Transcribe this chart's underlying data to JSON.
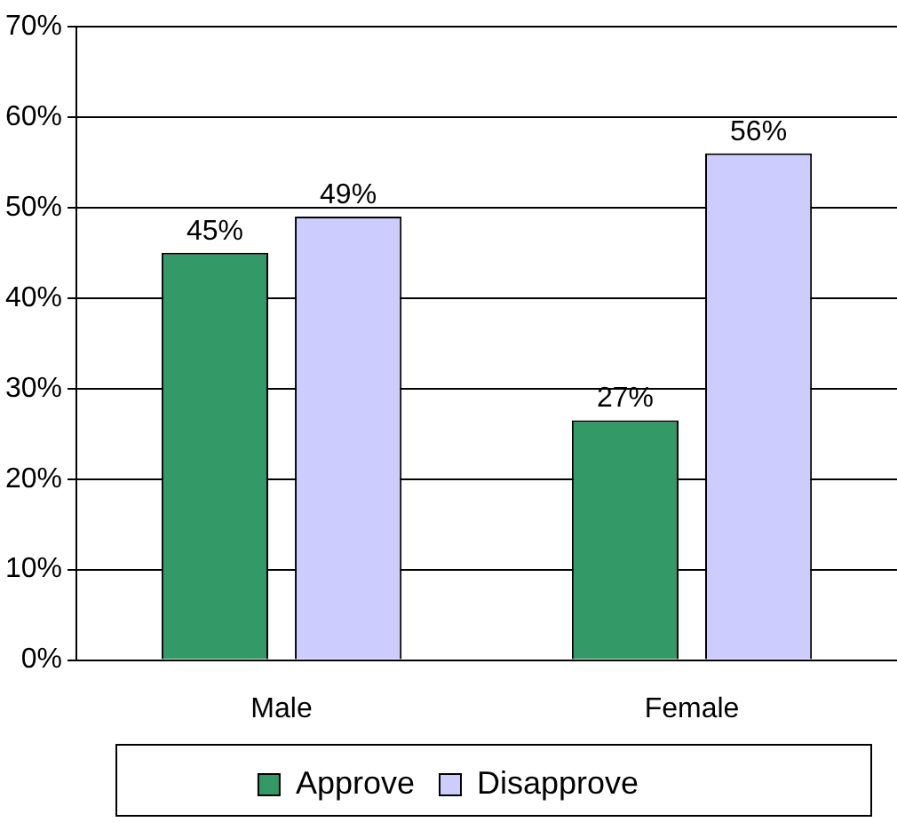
{
  "chart_data": {
    "type": "bar",
    "categories": [
      "Male",
      "Female"
    ],
    "series": [
      {
        "name": "Approve",
        "color": "#339966",
        "values": [
          45,
          26.5
        ],
        "value_labels": [
          "45%",
          "27%"
        ]
      },
      {
        "name": "Disapprove",
        "color": "#ccccff",
        "values": [
          49,
          56
        ],
        "value_labels": [
          "49%",
          "56%"
        ]
      }
    ],
    "ylim": [
      0,
      70
    ],
    "yticks": [
      {
        "value": 0,
        "label": "0%"
      },
      {
        "value": 10,
        "label": "10%"
      },
      {
        "value": 20,
        "label": "20%"
      },
      {
        "value": 30,
        "label": "30%"
      },
      {
        "value": 40,
        "label": "40%"
      },
      {
        "value": 50,
        "label": "50%"
      },
      {
        "value": 60,
        "label": "60%"
      },
      {
        "value": 70,
        "label": "70%"
      }
    ],
    "grid": "y",
    "legend": "bottom"
  }
}
